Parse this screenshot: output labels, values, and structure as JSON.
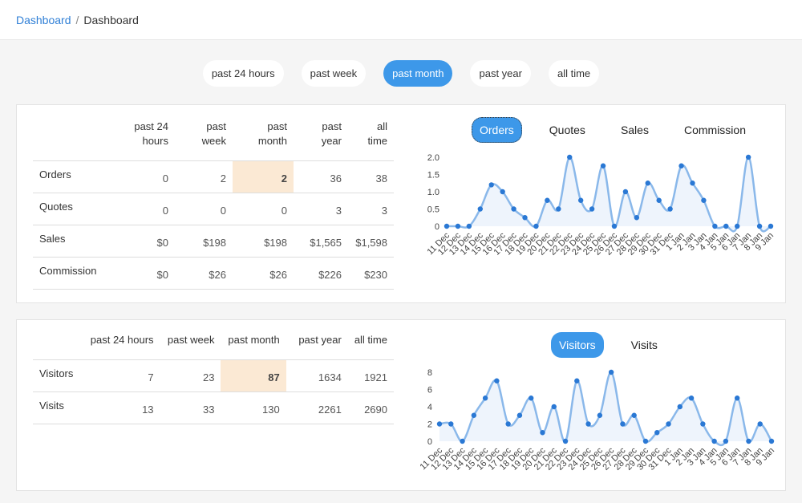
{
  "breadcrumb": {
    "link": "Dashboard",
    "separator": "/",
    "current": "Dashboard"
  },
  "periods": [
    {
      "label": "past 24 hours",
      "active": false
    },
    {
      "label": "past week",
      "active": false
    },
    {
      "label": "past month",
      "active": true
    },
    {
      "label": "past year",
      "active": false
    },
    {
      "label": "all time",
      "active": false
    }
  ],
  "sales_table": {
    "headers": [
      [
        "past 24",
        "hours"
      ],
      [
        "past",
        "week"
      ],
      [
        "past",
        "month"
      ],
      [
        "past",
        "year"
      ],
      [
        "all",
        "time"
      ]
    ],
    "rows": [
      {
        "label": "Orders",
        "values": [
          "0",
          "2",
          "2",
          "36",
          "38"
        ]
      },
      {
        "label": "Quotes",
        "values": [
          "0",
          "0",
          "0",
          "3",
          "3"
        ]
      },
      {
        "label": "Sales",
        "values": [
          "$0",
          "$198",
          "$198",
          "$1,565",
          "$1,598"
        ]
      },
      {
        "label": "Commission",
        "values": [
          "$0",
          "$26",
          "$26",
          "$226",
          "$230"
        ]
      }
    ]
  },
  "sales_tabs": [
    {
      "label": "Orders",
      "active": true
    },
    {
      "label": "Quotes",
      "active": false
    },
    {
      "label": "Sales",
      "active": false
    },
    {
      "label": "Commission",
      "active": false
    }
  ],
  "visitors_table": {
    "headers": [
      "past 24 hours",
      "past week",
      "past month",
      "past year",
      "all time"
    ],
    "rows": [
      {
        "label": "Visitors",
        "values": [
          "7",
          "23",
          "87",
          "1634",
          "1921"
        ]
      },
      {
        "label": "Visits",
        "values": [
          "13",
          "33",
          "130",
          "2261",
          "2690"
        ]
      }
    ]
  },
  "visitor_tabs": [
    {
      "label": "Visitors",
      "active": true
    },
    {
      "label": "Visits",
      "active": false
    }
  ],
  "colors": {
    "accent": "#3d98e9",
    "link": "#2f7fd6",
    "highlight": "#fbe9d4",
    "line": "#8ab8ea",
    "point": "#2a78d4",
    "area": "#eef4fc"
  },
  "chart_data": [
    {
      "type": "line",
      "categories": [
        "11 Dec",
        "12 Dec",
        "13 Dec",
        "14 Dec",
        "15 Dec",
        "16 Dec",
        "17 Dec",
        "18 Dec",
        "19 Dec",
        "20 Dec",
        "21 Dec",
        "22 Dec",
        "23 Dec",
        "24 Dec",
        "25 Dec",
        "26 Dec",
        "27 Dec",
        "28 Dec",
        "29 Dec",
        "30 Dec",
        "31 Dec",
        "1 Jan",
        "2 Jan",
        "3 Jan",
        "4 Jan",
        "5 Jan",
        "6 Jan",
        "7 Jan",
        "8 Jan",
        "9 Jan"
      ],
      "values": [
        0,
        0,
        0,
        0.5,
        1.2,
        1.0,
        0.5,
        0.25,
        0,
        0.75,
        0.5,
        2.0,
        0.75,
        0.5,
        1.75,
        0,
        1.0,
        0.25,
        1.25,
        0.75,
        0.5,
        1.75,
        1.25,
        0.75,
        0,
        0,
        0,
        2.0,
        0,
        0
      ],
      "yticks": [
        "0",
        "0.5",
        "1.0",
        "1.5",
        "2.0"
      ],
      "ylim": [
        0,
        2
      ]
    },
    {
      "type": "line",
      "categories": [
        "11 Dec",
        "12 Dec",
        "13 Dec",
        "14 Dec",
        "15 Dec",
        "16 Dec",
        "17 Dec",
        "18 Dec",
        "19 Dec",
        "20 Dec",
        "21 Dec",
        "22 Dec",
        "23 Dec",
        "24 Dec",
        "25 Dec",
        "26 Dec",
        "27 Dec",
        "28 Dec",
        "29 Dec",
        "30 Dec",
        "31 Dec",
        "1 Jan",
        "2 Jan",
        "3 Jan",
        "4 Jan",
        "5 Jan",
        "6 Jan",
        "7 Jan",
        "8 Jan",
        "9 Jan"
      ],
      "values": [
        2,
        2,
        0,
        3,
        5,
        7,
        2,
        3,
        5,
        1,
        4,
        0,
        7,
        2,
        3,
        8,
        2,
        3,
        0,
        1,
        2,
        4,
        5,
        2,
        0,
        0,
        5,
        0,
        2,
        0
      ],
      "yticks": [
        "0",
        "2",
        "4",
        "6",
        "8"
      ],
      "ylim": [
        0,
        8
      ]
    }
  ]
}
